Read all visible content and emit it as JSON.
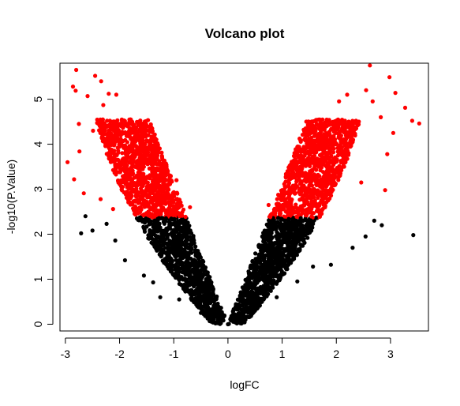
{
  "chart_data": {
    "type": "scatter",
    "title": "Volcano plot",
    "xlabel": "logFC",
    "ylabel": "-log10(P.Value)",
    "xlim": [
      -3.1,
      3.7
    ],
    "ylim": [
      -0.15,
      5.8
    ],
    "x_ticks": [
      -3,
      -2,
      -1,
      0,
      1,
      2,
      3
    ],
    "y_ticks": [
      0,
      1,
      2,
      3,
      4,
      5
    ],
    "x_tick_labels": [
      "-3",
      "-2",
      "-1",
      "0",
      "1",
      "2",
      "3"
    ],
    "y_tick_labels": [
      "0",
      "1",
      "2",
      "3",
      "4",
      "5"
    ],
    "significance_threshold": 2.37,
    "colors": {
      "significant": "#ff0000",
      "not_significant": "#000000",
      "axes": "#000000"
    },
    "series": [
      {
        "color": "#ff0000",
        "points": [
          [
            -2.8,
            5.65
          ],
          [
            -2.86,
            5.28
          ],
          [
            -2.81,
            5.19
          ],
          [
            -2.45,
            5.52
          ],
          [
            -2.34,
            5.4
          ],
          [
            -2.59,
            5.07
          ],
          [
            -2.2,
            5.12
          ],
          [
            -2.06,
            5.1
          ],
          [
            -2.75,
            4.45
          ],
          [
            -2.3,
            4.87
          ],
          [
            -2.49,
            4.3
          ],
          [
            -2.74,
            3.84
          ],
          [
            -2.84,
            3.22
          ],
          [
            -2.96,
            3.6
          ],
          [
            -2.66,
            2.91
          ],
          [
            -2.35,
            2.78
          ],
          [
            -2.12,
            2.56
          ],
          [
            -1.8,
            4.55
          ],
          [
            -1.55,
            4.4
          ],
          [
            -2.0,
            3.6
          ],
          [
            -1.3,
            3.9
          ],
          [
            -0.95,
            3.2
          ],
          [
            -0.7,
            2.6
          ],
          [
            2.62,
            5.75
          ],
          [
            2.98,
            5.49
          ],
          [
            2.55,
            5.2
          ],
          [
            2.67,
            4.95
          ],
          [
            3.09,
            5.14
          ],
          [
            3.27,
            4.81
          ],
          [
            3.4,
            4.52
          ],
          [
            3.53,
            4.46
          ],
          [
            2.2,
            5.1
          ],
          [
            2.05,
            4.95
          ],
          [
            2.82,
            4.6
          ],
          [
            3.05,
            4.25
          ],
          [
            2.94,
            3.78
          ],
          [
            2.46,
            3.15
          ],
          [
            2.9,
            2.98
          ],
          [
            1.6,
            4.4
          ],
          [
            1.1,
            3.4
          ],
          [
            0.75,
            2.65
          ],
          [
            2.2,
            3.9
          ]
        ]
      },
      {
        "color": "#000000",
        "points": [
          [
            -2.71,
            2.02
          ],
          [
            -2.63,
            2.4
          ],
          [
            -2.5,
            2.08
          ],
          [
            -2.24,
            2.23
          ],
          [
            -2.08,
            1.86
          ],
          [
            -1.9,
            1.42
          ],
          [
            -1.55,
            1.08
          ],
          [
            -1.38,
            0.93
          ],
          [
            -1.25,
            0.6
          ],
          [
            -0.9,
            0.55
          ],
          [
            -0.5,
            0.25
          ],
          [
            -0.15,
            0.05
          ],
          [
            3.42,
            1.98
          ],
          [
            2.84,
            2.2
          ],
          [
            2.7,
            2.3
          ],
          [
            2.54,
            1.95
          ],
          [
            2.3,
            1.7
          ],
          [
            1.9,
            1.32
          ],
          [
            1.57,
            1.28
          ],
          [
            1.28,
            0.95
          ],
          [
            0.9,
            0.6
          ],
          [
            0.5,
            0.3
          ],
          [
            0.15,
            0.05
          ],
          [
            0.0,
            0.0
          ]
        ]
      }
    ]
  }
}
